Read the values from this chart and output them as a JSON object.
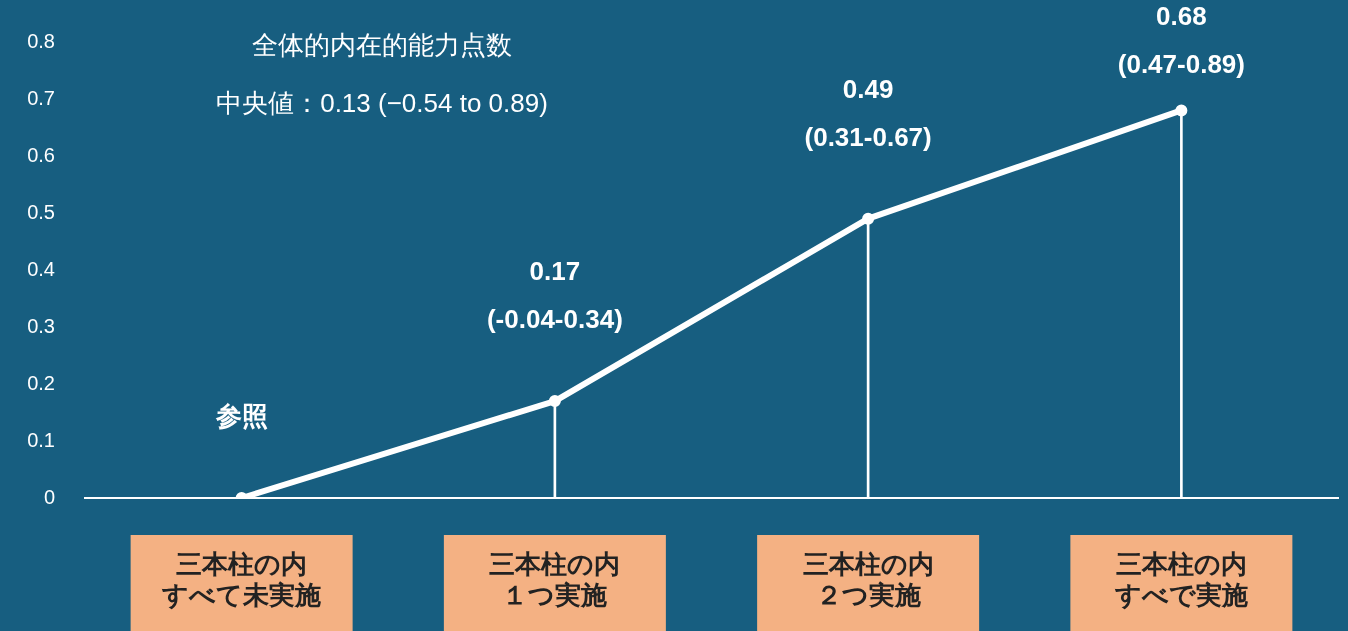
{
  "chart_data": {
    "type": "line",
    "title": "全体的内在的能力点数",
    "subtitle": "中央値：0.13 (−0.54 to 0.89)",
    "categories": [
      "三本柱の内すべて未実施",
      "三本柱の内１つ実施",
      "三本柱の内２つ実施",
      "三本柱の内すべで実施"
    ],
    "series": [
      {
        "color": "#ffffff",
        "values": [
          0,
          0.17,
          0.49,
          0.68
        ],
        "value_labels": [
          "参照",
          "0.17\n(-0.04-0.34)",
          "0.49\n(0.31-0.67)",
          "0.68\n(0.47-0.89)"
        ]
      },
      {
        "type": "bar",
        "color": "#ffffff",
        "values": [
          0,
          0.17,
          0.49,
          0.68
        ]
      }
    ],
    "ylim": [
      0,
      0.8
    ],
    "yticks": [
      0,
      0.1,
      0.2,
      0.3,
      0.4,
      0.5,
      0.6,
      0.7,
      0.8
    ],
    "grid": false,
    "legend": false,
    "marker": "circle"
  }
}
